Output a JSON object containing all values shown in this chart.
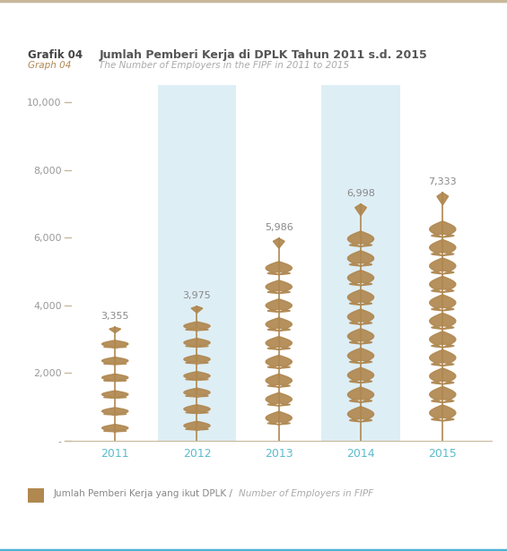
{
  "title_main": "Jumlah Pemberi Kerja di DPLK Tahun 2011 s.d. 2015",
  "title_label": "Grafik 04",
  "subtitle_main": "The Number of Employers in the FIPF in 2011 to 2015",
  "subtitle_label": "Graph 04",
  "years": [
    "2011",
    "2012",
    "2013",
    "2014",
    "2015"
  ],
  "values": [
    3355,
    3975,
    5986,
    6998,
    7333
  ],
  "value_labels": [
    "3,355",
    "3,975",
    "5,986",
    "6,998",
    "7,333"
  ],
  "highlighted_years": [
    1,
    3
  ],
  "highlight_color": "#deeef5",
  "bar_color": "#b08850",
  "yticks": [
    0,
    2000,
    4000,
    6000,
    8000,
    10000
  ],
  "ytick_labels": [
    "-",
    "2,000",
    "4,000",
    "6,000",
    "8,000",
    "10,000"
  ],
  "ymax": 10500,
  "year_color": "#5bbccc",
  "title_color": "#555555",
  "title_label_color": "#444444",
  "subtitle_color": "#aaaaaa",
  "subtitle_label_color": "#b08850",
  "legend_label": "Jumlah Pemberi Kerja yang ikut DPLK / ",
  "legend_label_italic": "Number of Employers in FIPF",
  "legend_color": "#b08850",
  "bg_color": "#ffffff",
  "border_top_color": "#c8b89a",
  "border_bottom_color": "#4db3d4",
  "tick_color": "#c8b89a",
  "value_color": "#888888"
}
